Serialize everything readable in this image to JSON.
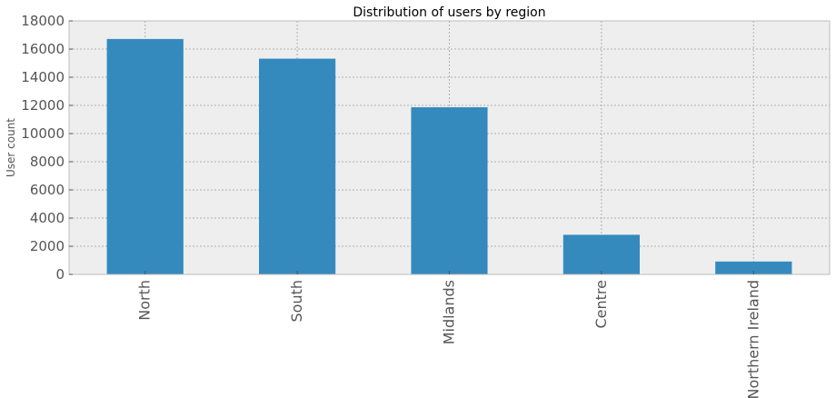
{
  "chart_data": {
    "type": "bar",
    "title": "Distribution of users by region",
    "xlabel": "",
    "ylabel": "User count",
    "categories": [
      "North",
      "South",
      "Midlands",
      "Centre",
      "Northern Ireland"
    ],
    "values": [
      16700,
      15300,
      11850,
      2800,
      900
    ],
    "ylim": [
      0,
      18000
    ],
    "yticks": [
      0,
      2000,
      4000,
      6000,
      8000,
      10000,
      12000,
      14000,
      16000,
      18000
    ],
    "grid": true,
    "legend": "none",
    "colors": {
      "bar": "#348abd",
      "plot_background": "#eeeeee",
      "axes_edge": "#bcbcbc"
    }
  }
}
